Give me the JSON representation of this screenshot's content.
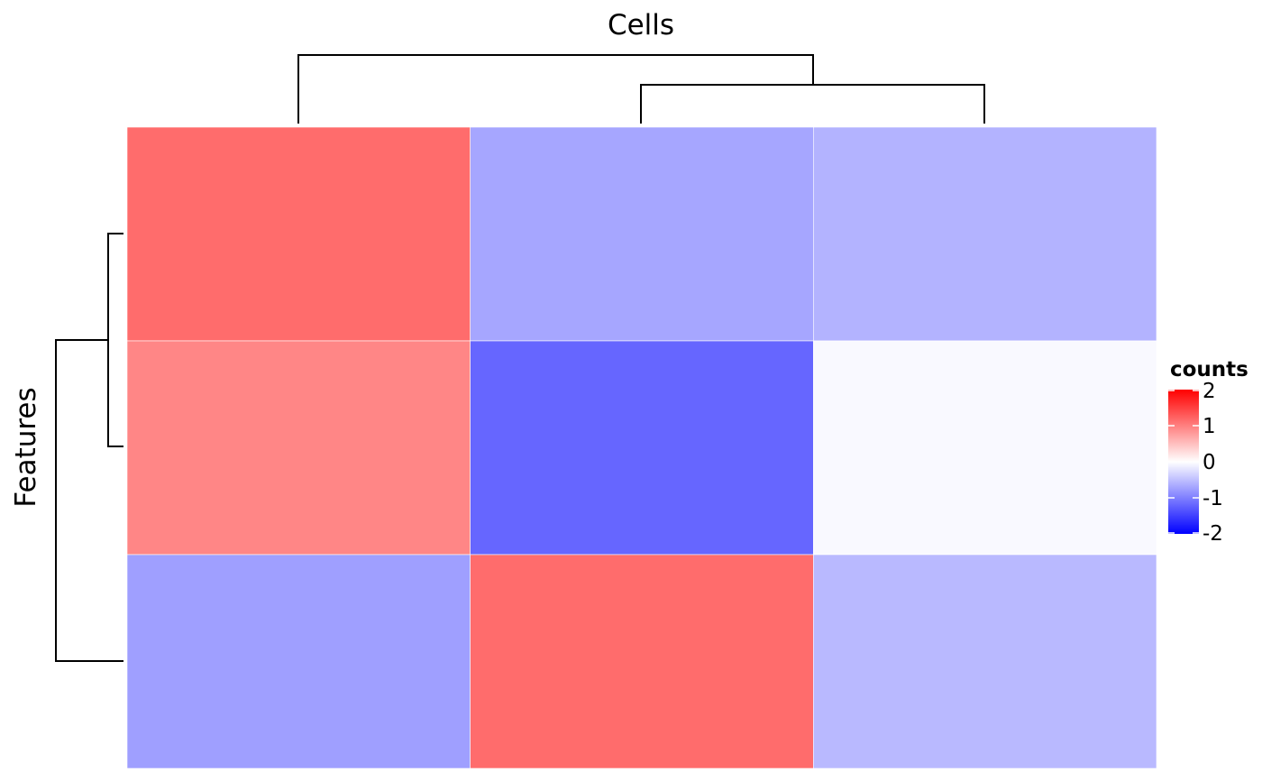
{
  "chart_data": {
    "type": "heatmap",
    "title": "",
    "xlabel": "Cells",
    "ylabel": "Features",
    "rows": 3,
    "cols": 3,
    "values": [
      [
        1.15,
        -0.7,
        -0.6
      ],
      [
        0.95,
        -1.2,
        -0.05
      ],
      [
        -0.75,
        1.15,
        -0.55
      ]
    ],
    "colorscale": {
      "min": -2,
      "max": 2,
      "low": "#0000ff",
      "mid": "#ffffff",
      "high": "#ff0000"
    },
    "col_dendrogram": {
      "merges": [
        [
          2,
          3
        ],
        [
          1,
          "2+3"
        ]
      ]
    },
    "row_dendrogram": {
      "merges": [
        [
          1,
          2
        ],
        [
          "1+2",
          3
        ]
      ]
    },
    "legend": {
      "title": "counts",
      "ticks": [
        "2",
        "1",
        "0",
        "-1",
        "-2"
      ],
      "tick_values": [
        2,
        1,
        0,
        -1,
        -2
      ],
      "placement": "right"
    }
  }
}
